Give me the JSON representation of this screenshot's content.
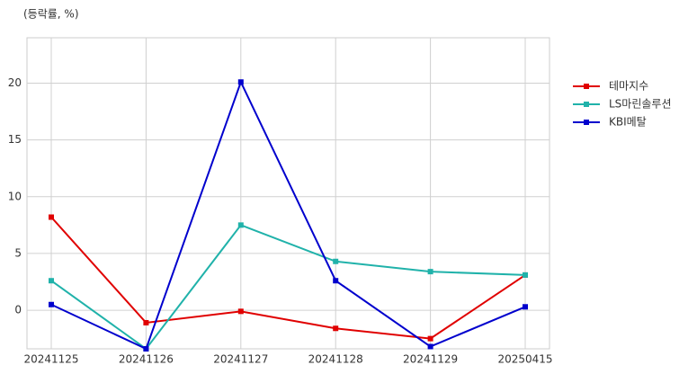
{
  "chart_data": {
    "type": "line",
    "y_label": "(등락률, %)",
    "categories": [
      "20241125",
      "20241126",
      "20241127",
      "20241128",
      "20241129",
      "20250415"
    ],
    "series": [
      {
        "name": "테마지수",
        "color": "#e00000",
        "values": [
          8.2,
          -1.1,
          -0.1,
          -1.6,
          -2.5,
          3.1
        ]
      },
      {
        "name": "LS마린솔루션",
        "color": "#20b2aa",
        "values": [
          2.6,
          -3.4,
          7.5,
          4.3,
          3.4,
          3.1
        ]
      },
      {
        "name": "KBI메탈",
        "color": "#0000cd",
        "values": [
          0.5,
          -3.4,
          20.1,
          2.6,
          -3.2,
          0.3
        ]
      }
    ],
    "ylim": [
      -3.4,
      24
    ],
    "yticks": [
      0,
      5,
      10,
      15,
      20
    ],
    "grid": true,
    "legend": "right"
  }
}
